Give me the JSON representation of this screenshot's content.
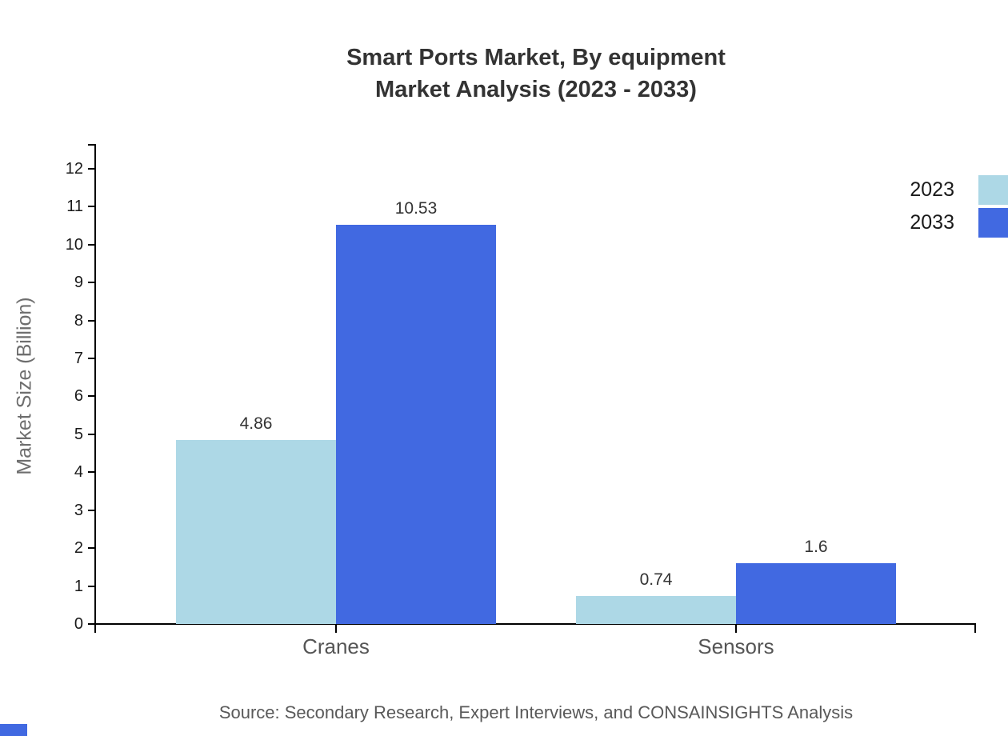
{
  "header": {
    "title_line1": "Smart Ports Market, By equipment",
    "title_line2": "Market Analysis (2023 - 2033)"
  },
  "footer": {
    "source_note": "Source: Secondary Research, Expert Interviews, and CONSAINSIGHTS Analysis"
  },
  "legend": {
    "position": "top-right",
    "items": [
      {
        "label": "2023",
        "color": "#ADD8E6"
      },
      {
        "label": "2033",
        "color": "#4169E1"
      }
    ]
  },
  "axes": {
    "y_label": "Market Size (Billion)",
    "y_ticks": [
      0,
      1,
      2,
      3,
      4,
      5,
      6,
      7,
      8,
      9,
      10,
      11,
      12
    ]
  },
  "chart_data": {
    "type": "bar",
    "title": "Smart Ports Market, By equipment Market Analysis (2023 - 2033)",
    "categories": [
      "Cranes",
      "Sensors"
    ],
    "series": [
      {
        "name": "2023",
        "color": "#ADD8E6",
        "values": [
          4.86,
          0.74
        ]
      },
      {
        "name": "2033",
        "color": "#4169E1",
        "values": [
          10.53,
          1.6
        ]
      }
    ],
    "value_labels": [
      [
        "4.86",
        "0.74"
      ],
      [
        "10.53",
        "1.6"
      ]
    ],
    "xlabel": "",
    "ylabel": "Market Size (Billion)",
    "ylim": [
      0,
      12
    ],
    "grid": false,
    "legend_position": "top-right"
  },
  "colors": {
    "series_2023": "#ADD8E6",
    "series_2033": "#4169E1",
    "axis": "#000000",
    "title_text": "#333333",
    "muted_text": "#595959"
  }
}
